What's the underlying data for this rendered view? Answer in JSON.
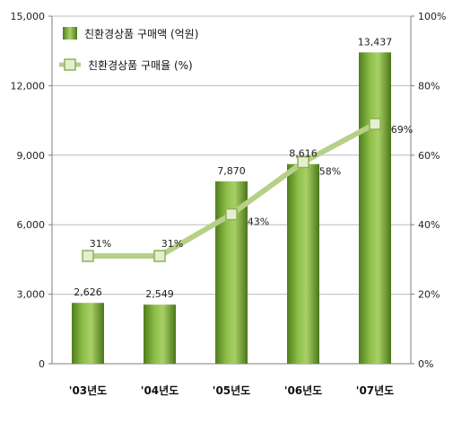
{
  "chart_data": {
    "type": "bar",
    "categories": [
      "'03년도",
      "'04년도",
      "'05년도",
      "'06년도",
      "'07년도"
    ],
    "series": [
      {
        "name": "친환경상품 구매액 (억원)",
        "type": "bar",
        "axis": "left",
        "values": [
          2626,
          2549,
          7870,
          8616,
          13437
        ],
        "data_labels": [
          "2,626",
          "2,549",
          "7,870",
          "8,616",
          "13,437"
        ]
      },
      {
        "name": "친환경상품 구매율 (%)",
        "type": "line",
        "axis": "right",
        "values": [
          31,
          31,
          43,
          58,
          69
        ],
        "data_labels": [
          "31%",
          "31%",
          "43%",
          "58%",
          "69%"
        ]
      }
    ],
    "y_left": {
      "min": 0,
      "max": 15000,
      "ticks": [
        0,
        3000,
        6000,
        9000,
        12000,
        15000
      ],
      "tick_labels": [
        "0",
        "3,000",
        "6,000",
        "9,000",
        "12,000",
        "15,000"
      ]
    },
    "y_right": {
      "min": 0,
      "max": 100,
      "ticks": [
        0,
        20,
        40,
        60,
        80,
        100
      ],
      "tick_labels": [
        "0%",
        "20%",
        "40%",
        "60%",
        "80%",
        "100%"
      ]
    },
    "grid": true,
    "legend_position": "top-left",
    "colors": {
      "bar_light": "#9dc85a",
      "bar_dark": "#4f7d1c",
      "line": "#b6d088",
      "marker_fill": "#e4efcf",
      "marker_stroke": "#8db058",
      "grid": "#bcbcbc",
      "axis": "#7f7f7f"
    }
  }
}
